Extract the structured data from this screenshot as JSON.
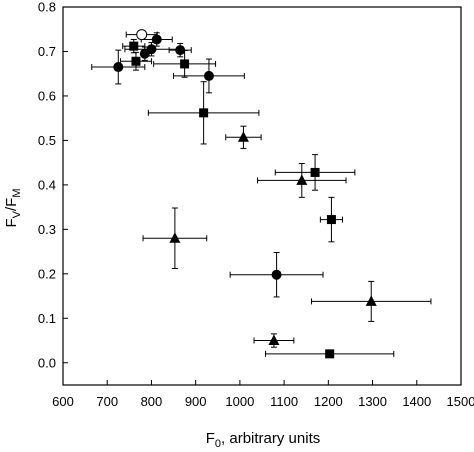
{
  "chart_data": {
    "type": "scatter",
    "xlabel": "F",
    "xlabel_sub": "0",
    "xlabel_suffix": ", arbitrary units",
    "ylabel": "F",
    "ylabel_sub1": "V",
    "ylabel_slash": "/F",
    "ylabel_sub2": "M",
    "xlim": [
      600,
      1500
    ],
    "ylim": [
      -0.05,
      0.8
    ],
    "xticks": [
      600,
      700,
      800,
      900,
      1000,
      1100,
      1200,
      1300,
      1400,
      1500
    ],
    "yticks": [
      0.0,
      0.1,
      0.2,
      0.3,
      0.4,
      0.5,
      0.6,
      0.7,
      0.8
    ],
    "ytick_labels": [
      "0.0",
      "0.1",
      "0.2",
      "0.3",
      "0.4",
      "0.5",
      "0.6",
      "0.7",
      "0.8"
    ],
    "grid": false,
    "series": [
      {
        "marker": "circle-filled",
        "points": [
          {
            "x": 725,
            "y": 0.665,
            "xerr": 60,
            "yerr": 0.038
          },
          {
            "x": 785,
            "y": 0.695,
            "xerr": 0,
            "yerr": 0.015
          },
          {
            "x": 800,
            "y": 0.705,
            "xerr": 60,
            "yerr": 0.015
          },
          {
            "x": 812,
            "y": 0.727,
            "xerr": 35,
            "yerr": 0.015
          },
          {
            "x": 865,
            "y": 0.703,
            "xerr": 25,
            "yerr": 0.015
          },
          {
            "x": 930,
            "y": 0.645,
            "xerr": 80,
            "yerr": 0.038
          },
          {
            "x": 1083,
            "y": 0.198,
            "xerr": 105,
            "yerr": 0.05
          }
        ]
      },
      {
        "marker": "circle-open",
        "points": [
          {
            "x": 778,
            "y": 0.738,
            "xerr": 35,
            "yerr": 0.008
          }
        ]
      },
      {
        "marker": "square",
        "points": [
          {
            "x": 760,
            "y": 0.712,
            "xerr": 25,
            "yerr": 0.015
          },
          {
            "x": 765,
            "y": 0.678,
            "xerr": 35,
            "yerr": 0.02
          },
          {
            "x": 875,
            "y": 0.672,
            "xerr": 70,
            "yerr": 0.03
          },
          {
            "x": 918,
            "y": 0.562,
            "xerr": 125,
            "yerr": 0.07
          },
          {
            "x": 1170,
            "y": 0.428,
            "xerr": 90,
            "yerr": 0.04
          },
          {
            "x": 1207,
            "y": 0.322,
            "xerr": 25,
            "yerr": 0.05
          },
          {
            "x": 1203,
            "y": 0.02,
            "xerr": 145,
            "yerr": 0
          }
        ]
      },
      {
        "marker": "triangle",
        "points": [
          {
            "x": 853,
            "y": 0.28,
            "xerr": 72,
            "yerr": 0.068
          },
          {
            "x": 1008,
            "y": 0.507,
            "xerr": 40,
            "yerr": 0.025
          },
          {
            "x": 1140,
            "y": 0.41,
            "xerr": 100,
            "yerr": 0.038
          },
          {
            "x": 1077,
            "y": 0.05,
            "xerr": 45,
            "yerr": 0.015
          },
          {
            "x": 1297,
            "y": 0.138,
            "xerr": 135,
            "yerr": 0.045
          }
        ]
      }
    ]
  }
}
